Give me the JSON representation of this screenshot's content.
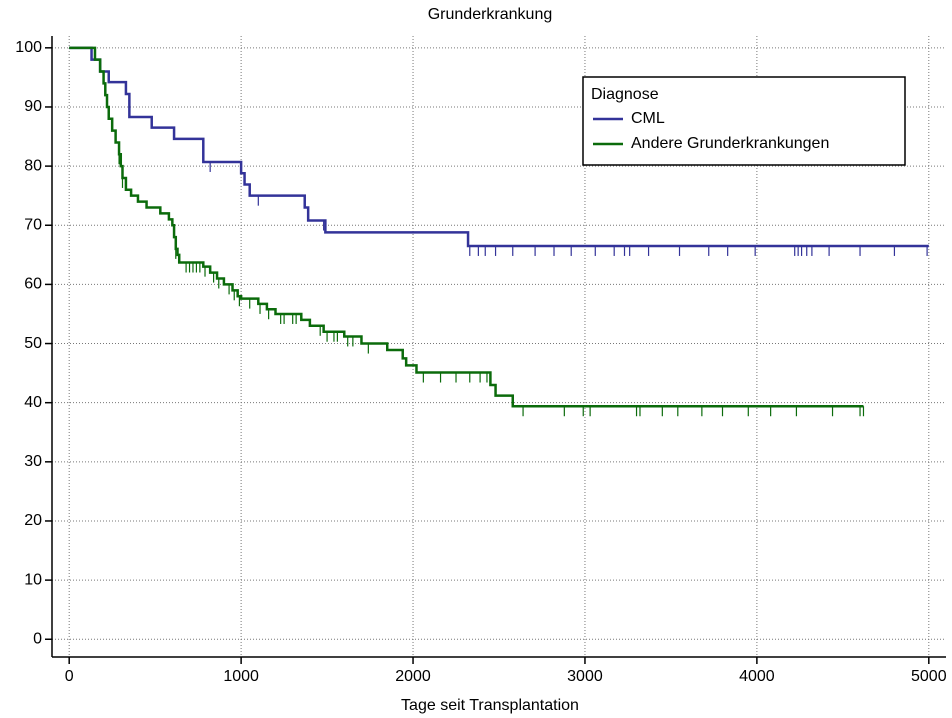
{
  "chart_data": {
    "type": "km-step",
    "title": "Grunderkrankung",
    "xlabel": "Tage seit Transplantation",
    "legend_title": "Diagnose",
    "legend_position": "upper right",
    "grid": true,
    "xlim": [
      -100,
      5100
    ],
    "ylim": [
      -3,
      102
    ],
    "xticks": [
      0,
      1000,
      2000,
      3000,
      4000,
      5000
    ],
    "yticks": [
      0,
      10,
      20,
      30,
      40,
      50,
      60,
      70,
      80,
      90,
      100
    ],
    "series": [
      {
        "name": "CML",
        "color": "#333399",
        "x": [
          0,
          130,
          180,
          230,
          330,
          350,
          480,
          610,
          780,
          1000,
          1020,
          1050,
          1370,
          1390,
          1490,
          2320,
          5000
        ],
        "values": [
          100,
          98,
          96,
          94.2,
          92.2,
          88.3,
          86.5,
          84.6,
          80.7,
          78.8,
          76.9,
          75,
          73,
          70.8,
          68.8,
          66.5,
          66.5
        ],
        "censored_x": [
          820,
          1100,
          1480,
          2330,
          2380,
          2420,
          2480,
          2580,
          2710,
          2820,
          2920,
          3060,
          3170,
          3230,
          3260,
          3370,
          3550,
          3720,
          3830,
          3990,
          4220,
          4240,
          4260,
          4290,
          4320,
          4420,
          4600,
          4800,
          4990
        ]
      },
      {
        "name": "Andere Grunderkrankungen",
        "color": "#0b6b0b",
        "x": [
          0,
          150,
          180,
          200,
          210,
          220,
          230,
          250,
          270,
          290,
          300,
          310,
          330,
          360,
          400,
          450,
          530,
          580,
          600,
          610,
          620,
          630,
          640,
          780,
          820,
          860,
          900,
          950,
          980,
          1000,
          1100,
          1150,
          1200,
          1350,
          1400,
          1480,
          1600,
          1700,
          1850,
          1940,
          1960,
          2020,
          2450,
          2480,
          2580,
          4620
        ],
        "values": [
          100,
          98,
          96,
          94,
          92,
          90,
          88,
          86,
          84,
          82,
          80,
          78,
          76,
          75,
          74,
          73,
          72,
          71,
          70,
          68,
          66,
          65,
          63.7,
          63,
          62,
          61,
          60,
          59,
          58,
          57.6,
          56.7,
          55.8,
          55,
          54,
          53,
          52,
          51.2,
          50,
          48.9,
          47.5,
          46.3,
          45.1,
          43,
          41.2,
          39.4,
          39.4
        ],
        "censored_x": [
          290,
          310,
          620,
          680,
          700,
          720,
          740,
          760,
          790,
          840,
          870,
          930,
          960,
          990,
          1050,
          1110,
          1160,
          1230,
          1250,
          1300,
          1320,
          1460,
          1500,
          1540,
          1560,
          1620,
          1650,
          1740,
          2060,
          2160,
          2250,
          2330,
          2390,
          2430,
          2640,
          2880,
          2990,
          3030,
          3300,
          3320,
          3450,
          3540,
          3680,
          3800,
          3950,
          4080,
          4230,
          4440,
          4600,
          4620
        ]
      }
    ]
  }
}
